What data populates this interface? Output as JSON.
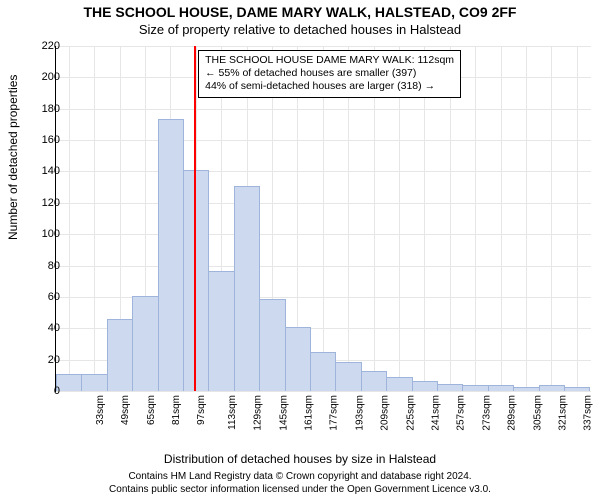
{
  "title": "THE SCHOOL HOUSE, DAME MARY WALK, HALSTEAD, CO9 2FF",
  "subtitle": "Size of property relative to detached houses in Halstead",
  "ylabel": "Number of detached properties",
  "xlabel": "Distribution of detached houses by size in Halstead",
  "footer_line1": "Contains HM Land Registry data © Crown copyright and database right 2024.",
  "footer_line2": "Contains public sector information licensed under the Open Government Licence v3.0.",
  "chart": {
    "type": "histogram",
    "background_color": "#ffffff",
    "grid_color": "#e6e6e6",
    "axis_color": "#000000",
    "bar_fill": "#cdd9ef",
    "bar_stroke": "#9fb4db",
    "marker_color": "#ff0000",
    "marker_x": 112,
    "ylim": [
      0,
      220
    ],
    "ytick_step": 20,
    "xlim": [
      25,
      362
    ],
    "xtick_start": 33,
    "xtick_step": 16,
    "xtick_count": 21,
    "xtick_suffix": "sqm",
    "bar_bin_width": 16,
    "bars": [
      {
        "x0": 25,
        "count": 10
      },
      {
        "x0": 41,
        "count": 10
      },
      {
        "x0": 57,
        "count": 45
      },
      {
        "x0": 73,
        "count": 60
      },
      {
        "x0": 89,
        "count": 173
      },
      {
        "x0": 105,
        "count": 140
      },
      {
        "x0": 121,
        "count": 76
      },
      {
        "x0": 137,
        "count": 130
      },
      {
        "x0": 153,
        "count": 58
      },
      {
        "x0": 169,
        "count": 40
      },
      {
        "x0": 185,
        "count": 24
      },
      {
        "x0": 201,
        "count": 18
      },
      {
        "x0": 217,
        "count": 12
      },
      {
        "x0": 233,
        "count": 8
      },
      {
        "x0": 249,
        "count": 6
      },
      {
        "x0": 265,
        "count": 4
      },
      {
        "x0": 281,
        "count": 3
      },
      {
        "x0": 297,
        "count": 3
      },
      {
        "x0": 313,
        "count": 2
      },
      {
        "x0": 329,
        "count": 3
      },
      {
        "x0": 345,
        "count": 2
      }
    ],
    "annotation": {
      "line1": "THE SCHOOL HOUSE DAME MARY WALK: 112sqm",
      "line2": "← 55% of detached houses are smaller (397)",
      "line3": "44% of semi-detached houses are larger (318) →"
    }
  }
}
